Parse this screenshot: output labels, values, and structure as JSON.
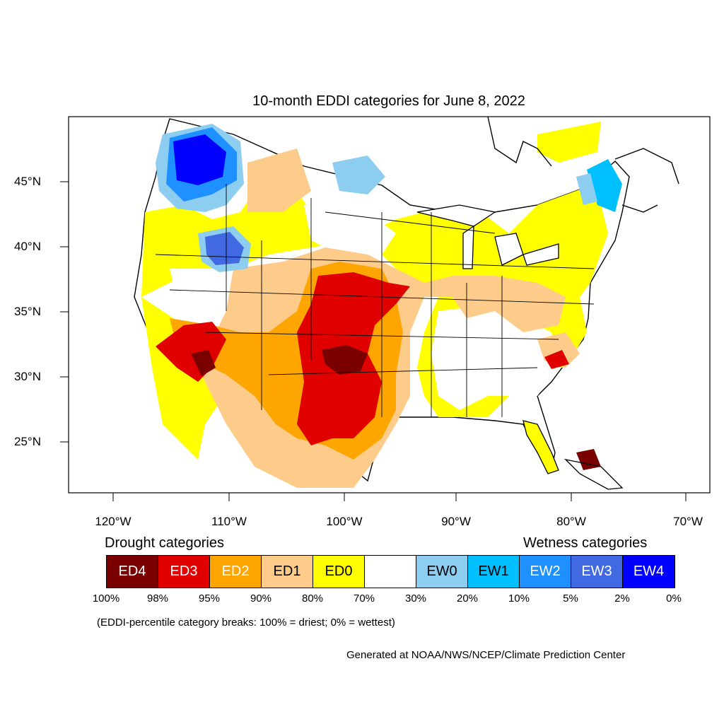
{
  "title": "10-month EDDI categories for June 8, 2022",
  "lat_labels": [
    "45°N",
    "40°N",
    "35°N",
    "30°N",
    "25°N"
  ],
  "lon_labels": [
    "120°W",
    "110°W",
    "100°W",
    "90°W",
    "80°W",
    "70°W"
  ],
  "legend": {
    "drought_heading": "Drought categories",
    "wetness_heading": "Wetness categories",
    "categories": [
      {
        "label": "ED4",
        "color": "#7a0000",
        "text_color": "#ffffff"
      },
      {
        "label": "ED3",
        "color": "#e00000",
        "text_color": "#ffffff"
      },
      {
        "label": "ED2",
        "color": "#ffa500",
        "text_color": "#ffffff"
      },
      {
        "label": "ED1",
        "color": "#fdcb8a",
        "text_color": "#000000"
      },
      {
        "label": "ED0",
        "color": "#ffff00",
        "text_color": "#000000"
      },
      {
        "label": "",
        "color": "#ffffff",
        "text_color": "#000000"
      },
      {
        "label": "EW0",
        "color": "#8ccdf0",
        "text_color": "#000000"
      },
      {
        "label": "EW1",
        "color": "#00bfff",
        "text_color": "#000000"
      },
      {
        "label": "EW2",
        "color": "#1e90ff",
        "text_color": "#ffffff"
      },
      {
        "label": "EW3",
        "color": "#4169e1",
        "text_color": "#ffffff"
      },
      {
        "label": "EW4",
        "color": "#0000ff",
        "text_color": "#ffffff"
      }
    ],
    "percent_breaks": [
      "100%",
      "98%",
      "95%",
      "90%",
      "80%",
      "70%",
      "30%",
      "20%",
      "10%",
      "5%",
      "2%",
      "0%"
    ]
  },
  "note": "(EDDI-percentile category breaks: 100% = driest; 0% = wettest)",
  "credit": "Generated at NOAA/NWS/NCEP/Climate Prediction Center"
}
